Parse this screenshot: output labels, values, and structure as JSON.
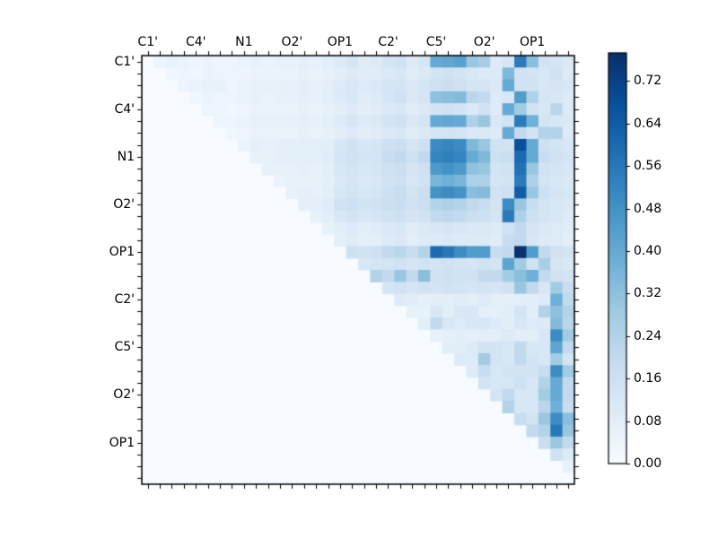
{
  "figure": {
    "background": "#ffffff"
  },
  "chart_data": {
    "type": "heatmap",
    "title": "",
    "colormap": "Blues",
    "triangle": "upper",
    "grid": false,
    "n_rows": 36,
    "n_cols": 36,
    "x_tick_labels": [
      "C1'",
      "C4'",
      "N1",
      "O2'",
      "OP1",
      "C2'",
      "C5'",
      "O2'",
      "OP1"
    ],
    "x_tick_positions": [
      0,
      4,
      8,
      12,
      16,
      20,
      24,
      28,
      32
    ],
    "y_tick_labels": [
      "C1'",
      "C4'",
      "N1",
      "O2'",
      "OP1",
      "C2'",
      "C5'",
      "O2'",
      "OP1"
    ],
    "y_tick_positions": [
      0,
      4,
      8,
      12,
      16,
      20,
      24,
      28,
      32
    ],
    "colorbar": {
      "tick_labels": [
        "0.00",
        "0.08",
        "0.16",
        "0.24",
        "0.32",
        "0.40",
        "0.48",
        "0.56",
        "0.64",
        "0.72"
      ],
      "tick_values": [
        0.0,
        0.08,
        0.16,
        0.24,
        0.32,
        0.4,
        0.48,
        0.56,
        0.64,
        0.72
      ],
      "vmin": 0.0,
      "vmax": 0.773,
      "position": "right"
    },
    "matrix": [
      [
        0,
        0.04,
        0.06,
        0.05,
        0.04,
        0.05,
        0.04,
        0.04,
        0.05,
        0.06,
        0.05,
        0.06,
        0.06,
        0.07,
        0.06,
        0.08,
        0.1,
        0.13,
        0.09,
        0.1,
        0.14,
        0.15,
        0.1,
        0.13,
        0.4,
        0.41,
        0.43,
        0.3,
        0.27,
        0.1,
        0.13,
        0.55,
        0.33,
        0.15,
        0.13,
        0.11
      ],
      [
        0,
        0,
        0.03,
        0.04,
        0.03,
        0.05,
        0.04,
        0.04,
        0.04,
        0.05,
        0.05,
        0.05,
        0.05,
        0.06,
        0.05,
        0.06,
        0.08,
        0.1,
        0.09,
        0.09,
        0.11,
        0.12,
        0.09,
        0.11,
        0.14,
        0.15,
        0.14,
        0.12,
        0.1,
        0.1,
        0.35,
        0.15,
        0.14,
        0.12,
        0.15,
        0.1
      ],
      [
        0,
        0,
        0,
        0.04,
        0.05,
        0.06,
        0.06,
        0.04,
        0.05,
        0.06,
        0.06,
        0.06,
        0.06,
        0.07,
        0.06,
        0.07,
        0.1,
        0.12,
        0.1,
        0.11,
        0.13,
        0.14,
        0.11,
        0.13,
        0.16,
        0.17,
        0.16,
        0.13,
        0.13,
        0.11,
        0.4,
        0.15,
        0.15,
        0.12,
        0.13,
        0.12
      ],
      [
        0,
        0,
        0,
        0,
        0.03,
        0.05,
        0.04,
        0.04,
        0.05,
        0.06,
        0.05,
        0.06,
        0.06,
        0.07,
        0.06,
        0.08,
        0.1,
        0.12,
        0.09,
        0.1,
        0.13,
        0.15,
        0.11,
        0.13,
        0.32,
        0.33,
        0.34,
        0.22,
        0.2,
        0.1,
        0.12,
        0.45,
        0.25,
        0.13,
        0.12,
        0.1
      ],
      [
        0,
        0,
        0,
        0,
        0,
        0.04,
        0.04,
        0.03,
        0.04,
        0.05,
        0.05,
        0.05,
        0.05,
        0.06,
        0.05,
        0.06,
        0.08,
        0.1,
        0.08,
        0.09,
        0.11,
        0.12,
        0.09,
        0.11,
        0.14,
        0.15,
        0.14,
        0.11,
        0.15,
        0.1,
        0.4,
        0.28,
        0.15,
        0.12,
        0.22,
        0.1
      ],
      [
        0,
        0,
        0,
        0,
        0,
        0,
        0.04,
        0.04,
        0.05,
        0.06,
        0.06,
        0.06,
        0.06,
        0.07,
        0.06,
        0.08,
        0.1,
        0.13,
        0.1,
        0.11,
        0.14,
        0.15,
        0.11,
        0.14,
        0.4,
        0.41,
        0.4,
        0.25,
        0.3,
        0.12,
        0.15,
        0.55,
        0.38,
        0.14,
        0.12,
        0.11
      ],
      [
        0,
        0,
        0,
        0,
        0,
        0,
        0,
        0.03,
        0.04,
        0.05,
        0.05,
        0.05,
        0.05,
        0.06,
        0.05,
        0.06,
        0.08,
        0.1,
        0.08,
        0.09,
        0.11,
        0.12,
        0.09,
        0.11,
        0.13,
        0.14,
        0.13,
        0.11,
        0.11,
        0.1,
        0.4,
        0.2,
        0.14,
        0.24,
        0.24,
        0.1
      ],
      [
        0,
        0,
        0,
        0,
        0,
        0,
        0,
        0,
        0.05,
        0.07,
        0.06,
        0.07,
        0.07,
        0.08,
        0.07,
        0.08,
        0.12,
        0.15,
        0.12,
        0.13,
        0.16,
        0.17,
        0.13,
        0.16,
        0.5,
        0.52,
        0.5,
        0.35,
        0.3,
        0.15,
        0.15,
        0.68,
        0.4,
        0.16,
        0.14,
        0.12
      ],
      [
        0,
        0,
        0,
        0,
        0,
        0,
        0,
        0,
        0,
        0.06,
        0.06,
        0.07,
        0.07,
        0.08,
        0.07,
        0.09,
        0.13,
        0.15,
        0.13,
        0.14,
        0.18,
        0.2,
        0.16,
        0.2,
        0.52,
        0.54,
        0.52,
        0.4,
        0.35,
        0.16,
        0.17,
        0.6,
        0.4,
        0.18,
        0.15,
        0.13
      ],
      [
        0,
        0,
        0,
        0,
        0,
        0,
        0,
        0,
        0,
        0,
        0.06,
        0.06,
        0.06,
        0.07,
        0.06,
        0.08,
        0.12,
        0.14,
        0.12,
        0.13,
        0.16,
        0.17,
        0.13,
        0.16,
        0.46,
        0.48,
        0.46,
        0.32,
        0.3,
        0.14,
        0.15,
        0.58,
        0.3,
        0.15,
        0.13,
        0.12
      ],
      [
        0,
        0,
        0,
        0,
        0,
        0,
        0,
        0,
        0,
        0,
        0,
        0.05,
        0.06,
        0.06,
        0.06,
        0.07,
        0.11,
        0.13,
        0.11,
        0.12,
        0.15,
        0.16,
        0.12,
        0.15,
        0.36,
        0.38,
        0.36,
        0.25,
        0.25,
        0.13,
        0.14,
        0.55,
        0.25,
        0.14,
        0.12,
        0.11
      ],
      [
        0,
        0,
        0,
        0,
        0,
        0,
        0,
        0,
        0,
        0,
        0,
        0,
        0.06,
        0.07,
        0.06,
        0.08,
        0.12,
        0.14,
        0.12,
        0.13,
        0.16,
        0.18,
        0.14,
        0.17,
        0.48,
        0.5,
        0.48,
        0.33,
        0.34,
        0.15,
        0.16,
        0.64,
        0.3,
        0.16,
        0.13,
        0.12
      ],
      [
        0,
        0,
        0,
        0,
        0,
        0,
        0,
        0,
        0,
        0,
        0,
        0,
        0,
        0.07,
        0.07,
        0.09,
        0.15,
        0.16,
        0.14,
        0.15,
        0.17,
        0.18,
        0.15,
        0.17,
        0.24,
        0.25,
        0.24,
        0.2,
        0.18,
        0.14,
        0.5,
        0.3,
        0.18,
        0.14,
        0.12,
        0.11
      ],
      [
        0,
        0,
        0,
        0,
        0,
        0,
        0,
        0,
        0,
        0,
        0,
        0,
        0,
        0,
        0.06,
        0.08,
        0.12,
        0.14,
        0.12,
        0.13,
        0.15,
        0.16,
        0.13,
        0.15,
        0.2,
        0.21,
        0.2,
        0.17,
        0.16,
        0.13,
        0.55,
        0.25,
        0.16,
        0.13,
        0.12,
        0.1
      ],
      [
        0,
        0,
        0,
        0,
        0,
        0,
        0,
        0,
        0,
        0,
        0,
        0,
        0,
        0,
        0,
        0.06,
        0.08,
        0.1,
        0.08,
        0.09,
        0.11,
        0.12,
        0.09,
        0.11,
        0.12,
        0.13,
        0.12,
        0.11,
        0.11,
        0.1,
        0.15,
        0.2,
        0.13,
        0.11,
        0.1,
        0.09
      ],
      [
        0,
        0,
        0,
        0,
        0,
        0,
        0,
        0,
        0,
        0,
        0,
        0,
        0,
        0,
        0,
        0,
        0.07,
        0.09,
        0.07,
        0.08,
        0.1,
        0.11,
        0.08,
        0.1,
        0.1,
        0.11,
        0.1,
        0.1,
        0.1,
        0.09,
        0.18,
        0.2,
        0.12,
        0.1,
        0.1,
        0.08
      ],
      [
        0,
        0,
        0,
        0,
        0,
        0,
        0,
        0,
        0,
        0,
        0,
        0,
        0,
        0,
        0,
        0,
        0,
        0.16,
        0.15,
        0.16,
        0.2,
        0.22,
        0.18,
        0.24,
        0.6,
        0.56,
        0.5,
        0.45,
        0.45,
        0.18,
        0.2,
        0.77,
        0.45,
        0.2,
        0.15,
        0.14
      ],
      [
        0,
        0,
        0,
        0,
        0,
        0,
        0,
        0,
        0,
        0,
        0,
        0,
        0,
        0,
        0,
        0,
        0,
        0,
        0.12,
        0.13,
        0.14,
        0.15,
        0.13,
        0.15,
        0.14,
        0.15,
        0.14,
        0.13,
        0.15,
        0.14,
        0.42,
        0.28,
        0.15,
        0.26,
        0.13,
        0.11
      ],
      [
        0,
        0,
        0,
        0,
        0,
        0,
        0,
        0,
        0,
        0,
        0,
        0,
        0,
        0,
        0,
        0,
        0,
        0,
        0,
        0.24,
        0.2,
        0.3,
        0.2,
        0.33,
        0.15,
        0.16,
        0.15,
        0.15,
        0.2,
        0.2,
        0.28,
        0.33,
        0.38,
        0.2,
        0.15,
        0.14
      ],
      [
        0,
        0,
        0,
        0,
        0,
        0,
        0,
        0,
        0,
        0,
        0,
        0,
        0,
        0,
        0,
        0,
        0,
        0,
        0,
        0,
        0.13,
        0.15,
        0.13,
        0.15,
        0.14,
        0.15,
        0.14,
        0.13,
        0.14,
        0.13,
        0.15,
        0.3,
        0.2,
        0.12,
        0.28,
        0.18
      ],
      [
        0,
        0,
        0,
        0,
        0,
        0,
        0,
        0,
        0,
        0,
        0,
        0,
        0,
        0,
        0,
        0,
        0,
        0,
        0,
        0,
        0,
        0.1,
        0.09,
        0.07,
        0.08,
        0.08,
        0.09,
        0.08,
        0.1,
        0.08,
        0.07,
        0.08,
        0.08,
        0.1,
        0.38,
        0.2
      ],
      [
        0,
        0,
        0,
        0,
        0,
        0,
        0,
        0,
        0,
        0,
        0,
        0,
        0,
        0,
        0,
        0,
        0,
        0,
        0,
        0,
        0,
        0,
        0.06,
        0.06,
        0.12,
        0.08,
        0.12,
        0.12,
        0.07,
        0.07,
        0.08,
        0.14,
        0.08,
        0.24,
        0.32,
        0.24
      ],
      [
        0,
        0,
        0,
        0,
        0,
        0,
        0,
        0,
        0,
        0,
        0,
        0,
        0,
        0,
        0,
        0,
        0,
        0,
        0,
        0,
        0,
        0,
        0,
        0.08,
        0.2,
        0.12,
        0.1,
        0.12,
        0.12,
        0.1,
        0.08,
        0.12,
        0.1,
        0.1,
        0.34,
        0.22
      ],
      [
        0,
        0,
        0,
        0,
        0,
        0,
        0,
        0,
        0,
        0,
        0,
        0,
        0,
        0,
        0,
        0,
        0,
        0,
        0,
        0,
        0,
        0,
        0,
        0,
        0.06,
        0.07,
        0.08,
        0.07,
        0.08,
        0.08,
        0.1,
        0.08,
        0.08,
        0.12,
        0.5,
        0.28
      ],
      [
        0,
        0,
        0,
        0,
        0,
        0,
        0,
        0,
        0,
        0,
        0,
        0,
        0,
        0,
        0,
        0,
        0,
        0,
        0,
        0,
        0,
        0,
        0,
        0,
        0,
        0.08,
        0.08,
        0.1,
        0.14,
        0.14,
        0.12,
        0.2,
        0.12,
        0.12,
        0.42,
        0.2
      ],
      [
        0,
        0,
        0,
        0,
        0,
        0,
        0,
        0,
        0,
        0,
        0,
        0,
        0,
        0,
        0,
        0,
        0,
        0,
        0,
        0,
        0,
        0,
        0,
        0,
        0,
        0,
        0.1,
        0.1,
        0.28,
        0.14,
        0.12,
        0.2,
        0.14,
        0.12,
        0.28,
        0.14
      ],
      [
        0,
        0,
        0,
        0,
        0,
        0,
        0,
        0,
        0,
        0,
        0,
        0,
        0,
        0,
        0,
        0,
        0,
        0,
        0,
        0,
        0,
        0,
        0,
        0,
        0,
        0,
        0,
        0.1,
        0.18,
        0.12,
        0.14,
        0.14,
        0.14,
        0.18,
        0.5,
        0.28
      ],
      [
        0,
        0,
        0,
        0,
        0,
        0,
        0,
        0,
        0,
        0,
        0,
        0,
        0,
        0,
        0,
        0,
        0,
        0,
        0,
        0,
        0,
        0,
        0,
        0,
        0,
        0,
        0,
        0,
        0.14,
        0.12,
        0.12,
        0.16,
        0.12,
        0.24,
        0.4,
        0.2
      ],
      [
        0,
        0,
        0,
        0,
        0,
        0,
        0,
        0,
        0,
        0,
        0,
        0,
        0,
        0,
        0,
        0,
        0,
        0,
        0,
        0,
        0,
        0,
        0,
        0,
        0,
        0,
        0,
        0,
        0,
        0.14,
        0.2,
        0.12,
        0.12,
        0.28,
        0.4,
        0.2
      ],
      [
        0,
        0,
        0,
        0,
        0,
        0,
        0,
        0,
        0,
        0,
        0,
        0,
        0,
        0,
        0,
        0,
        0,
        0,
        0,
        0,
        0,
        0,
        0,
        0,
        0,
        0,
        0,
        0,
        0,
        0,
        0.24,
        0.12,
        0.12,
        0.22,
        0.38,
        0.18
      ],
      [
        0,
        0,
        0,
        0,
        0,
        0,
        0,
        0,
        0,
        0,
        0,
        0,
        0,
        0,
        0,
        0,
        0,
        0,
        0,
        0,
        0,
        0,
        0,
        0,
        0,
        0,
        0,
        0,
        0,
        0,
        0,
        0.18,
        0.14,
        0.3,
        0.5,
        0.33
      ],
      [
        0,
        0,
        0,
        0,
        0,
        0,
        0,
        0,
        0,
        0,
        0,
        0,
        0,
        0,
        0,
        0,
        0,
        0,
        0,
        0,
        0,
        0,
        0,
        0,
        0,
        0,
        0,
        0,
        0,
        0,
        0,
        0,
        0.2,
        0.24,
        0.56,
        0.3
      ],
      [
        0,
        0,
        0,
        0,
        0,
        0,
        0,
        0,
        0,
        0,
        0,
        0,
        0,
        0,
        0,
        0,
        0,
        0,
        0,
        0,
        0,
        0,
        0,
        0,
        0,
        0,
        0,
        0,
        0,
        0,
        0,
        0,
        0,
        0.18,
        0.3,
        0.2
      ],
      [
        0,
        0,
        0,
        0,
        0,
        0,
        0,
        0,
        0,
        0,
        0,
        0,
        0,
        0,
        0,
        0,
        0,
        0,
        0,
        0,
        0,
        0,
        0,
        0,
        0,
        0,
        0,
        0,
        0,
        0,
        0,
        0,
        0,
        0,
        0.15,
        0.1
      ],
      [
        0,
        0,
        0,
        0,
        0,
        0,
        0,
        0,
        0,
        0,
        0,
        0,
        0,
        0,
        0,
        0,
        0,
        0,
        0,
        0,
        0,
        0,
        0,
        0,
        0,
        0,
        0,
        0,
        0,
        0,
        0,
        0,
        0,
        0,
        0,
        0.06
      ],
      [
        0,
        0,
        0,
        0,
        0,
        0,
        0,
        0,
        0,
        0,
        0,
        0,
        0,
        0,
        0,
        0,
        0,
        0,
        0,
        0,
        0,
        0,
        0,
        0,
        0,
        0,
        0,
        0,
        0,
        0,
        0,
        0,
        0,
        0,
        0,
        0
      ]
    ]
  }
}
